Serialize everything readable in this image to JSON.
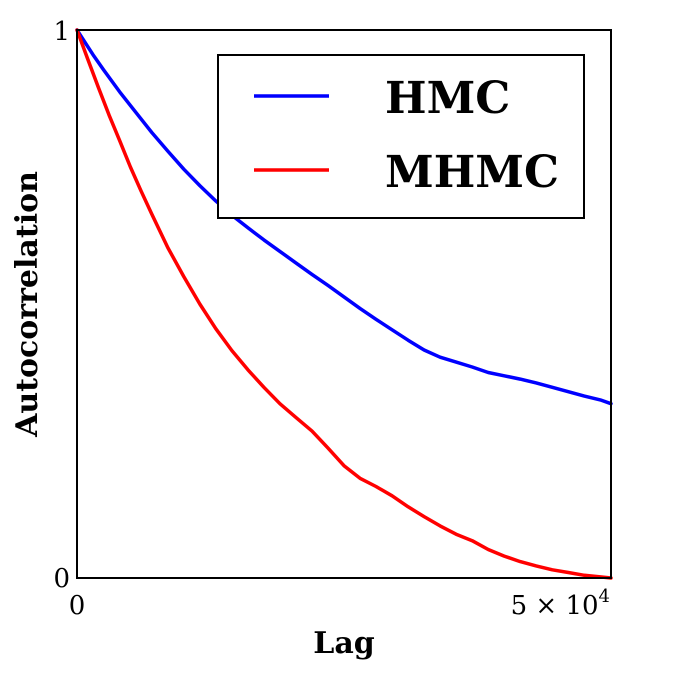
{
  "chart_data": {
    "type": "line",
    "title": "",
    "xlabel": "Lag",
    "ylabel": "Autocorrelation",
    "xlim": [
      0,
      50000
    ],
    "ylim": [
      0,
      1
    ],
    "x_ticks": [
      {
        "value": 0,
        "label": "0",
        "exponent": ""
      },
      {
        "value": 50000,
        "label": "5 × 10",
        "exponent": "4"
      }
    ],
    "y_ticks": [
      {
        "value": 0,
        "label": "0"
      },
      {
        "value": 1,
        "label": "1"
      }
    ],
    "grid": false,
    "legend": {
      "position": "top-right"
    },
    "series": [
      {
        "name": "HMC",
        "color": "#0000ff",
        "x": [
          0,
          1500,
          2500,
          4000,
          5500,
          7000,
          8500,
          10000,
          11500,
          13000,
          14500,
          16000,
          17500,
          19000,
          20500,
          22000,
          23500,
          25000,
          26500,
          28000,
          29500,
          31000,
          32500,
          34000,
          35500,
          37000,
          38500,
          40000,
          41500,
          43000,
          44500,
          46000,
          47500,
          49000,
          50000
        ],
        "y": [
          1.0,
          0.955,
          0.927,
          0.887,
          0.85,
          0.813,
          0.779,
          0.746,
          0.716,
          0.688,
          0.662,
          0.639,
          0.617,
          0.596,
          0.575,
          0.554,
          0.534,
          0.513,
          0.492,
          0.472,
          0.453,
          0.434,
          0.416,
          0.403,
          0.394,
          0.385,
          0.375,
          0.369,
          0.363,
          0.356,
          0.348,
          0.34,
          0.332,
          0.325,
          0.318
        ]
      },
      {
        "name": "MHMC",
        "color": "#ff0000",
        "x": [
          0,
          1000,
          2000,
          3000,
          4000,
          5000,
          6000,
          7000,
          8500,
          10000,
          11500,
          13000,
          14500,
          16000,
          17500,
          19000,
          20500,
          22000,
          23500,
          25000,
          26500,
          28000,
          29500,
          31000,
          32500,
          34000,
          35500,
          37000,
          38500,
          40000,
          41500,
          43000,
          44500,
          46000,
          47500,
          49000,
          50000
        ],
        "y": [
          1.0,
          0.947,
          0.895,
          0.845,
          0.798,
          0.75,
          0.706,
          0.664,
          0.603,
          0.55,
          0.5,
          0.455,
          0.415,
          0.38,
          0.348,
          0.318,
          0.293,
          0.268,
          0.237,
          0.205,
          0.182,
          0.167,
          0.15,
          0.13,
          0.112,
          0.095,
          0.08,
          0.068,
          0.052,
          0.04,
          0.03,
          0.022,
          0.015,
          0.01,
          0.005,
          0.002,
          0.0
        ]
      }
    ]
  }
}
